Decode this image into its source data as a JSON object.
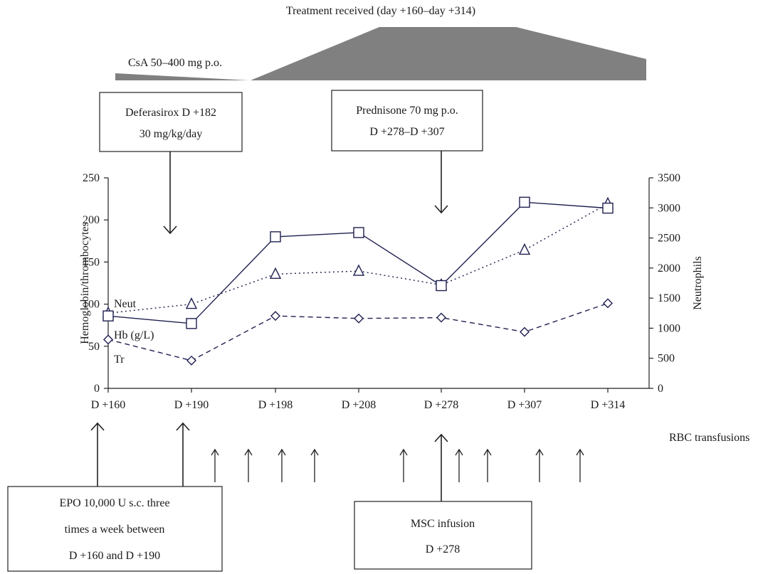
{
  "treatment": {
    "title": "Treatment received (day +160–day +314)",
    "csa_label": "CsA 50–400 mg p.o.",
    "fill_color": "#808080"
  },
  "callouts": {
    "deferasirox": [
      "Deferasirox D +182",
      "30 mg/kg/day"
    ],
    "prednisone": [
      "Prednisone 70 mg p.o.",
      "D +278–D +307"
    ],
    "epo": [
      "EPO 10,000 U s.c. three",
      "times a week between",
      "D +160 and D +190"
    ],
    "msc": [
      "MSC infusion",
      "D +278"
    ]
  },
  "rbc_label": "RBC transfusions",
  "chart_data": {
    "type": "line",
    "categories": [
      "D +160",
      "D +190",
      "D +198",
      "D +208",
      "D +278",
      "D +307",
      "D +314"
    ],
    "y_left": {
      "label": "Hemoglobin/thrombocytes",
      "ylim": [
        0,
        250
      ],
      "ticks": [
        "0",
        "50",
        "100",
        "150",
        "200",
        "250"
      ]
    },
    "y_right": {
      "label": "Neutrophils",
      "ylim": [
        0,
        3500
      ],
      "ticks": [
        "0",
        "500",
        "1000",
        "1500",
        "2000",
        "2500",
        "3000",
        "3500"
      ]
    },
    "series": [
      {
        "name": "Neut",
        "axis": "right",
        "marker": "triangle",
        "style": "dotted",
        "values": [
          1250,
          1400,
          1900,
          1950,
          1720,
          2300,
          3070
        ]
      },
      {
        "name": "Hb (g/L)",
        "axis": "left",
        "marker": "square",
        "style": "solid",
        "values": [
          86,
          77,
          180,
          185,
          122,
          221,
          214
        ]
      },
      {
        "name": "Tr",
        "axis": "left",
        "marker": "diamond",
        "style": "dashed",
        "values": [
          58,
          33,
          86,
          83,
          84,
          67,
          101
        ]
      }
    ],
    "line_color": "#1f2050",
    "grid": false
  }
}
